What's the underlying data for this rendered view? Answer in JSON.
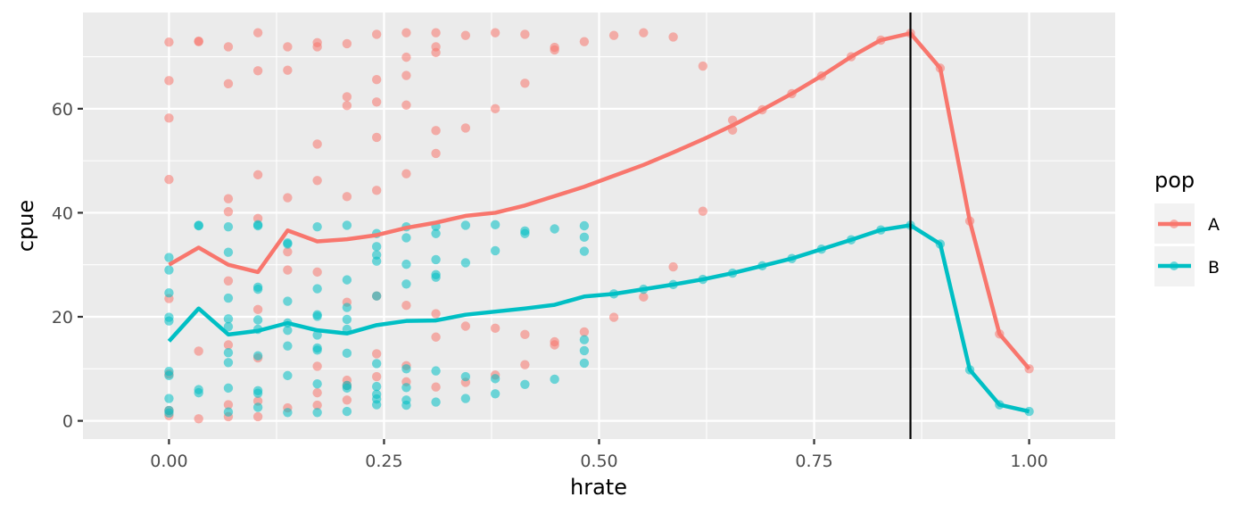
{
  "chart_data": {
    "type": "scatter",
    "xlabel": "hrate",
    "ylabel": "cpue",
    "xlim": [
      -0.1,
      1.1
    ],
    "ylim": [
      -3.5,
      78.5
    ],
    "x_ticks": [
      0.0,
      0.25,
      0.5,
      0.75,
      1.0
    ],
    "x_tick_labels": [
      "0.00",
      "0.25",
      "0.50",
      "0.75",
      "1.00"
    ],
    "y_ticks": [
      0,
      20,
      40,
      60
    ],
    "y_tick_labels": [
      "0",
      "20",
      "40",
      "60"
    ],
    "grid": true,
    "background": "#ebebeb",
    "vline_x": 0.862,
    "legend": {
      "title": "pop",
      "position": "right"
    },
    "series": [
      {
        "name": "A",
        "color": "#f8766d",
        "line": {
          "x": [
            0.0,
            0.0345,
            0.069,
            0.1034,
            0.1379,
            0.1724,
            0.2069,
            0.2414,
            0.2759,
            0.3103,
            0.3448,
            0.3793,
            0.4138,
            0.4483,
            0.4828,
            0.5172,
            0.5517,
            0.5862,
            0.6207,
            0.6552,
            0.6897,
            0.7241,
            0.7586,
            0.7931,
            0.8276,
            0.862,
            0.8966,
            0.931,
            0.9655,
            1.0
          ],
          "y": [
            30.0,
            33.3,
            30.0,
            28.6,
            36.6,
            34.5,
            34.9,
            35.7,
            37.1,
            38.1,
            39.4,
            40.0,
            41.4,
            43.2,
            45.0,
            47.1,
            49.2,
            51.6,
            54.1,
            56.8,
            59.8,
            62.9,
            66.3,
            70.0,
            73.2,
            74.5,
            67.8,
            38.4,
            16.7,
            10.0
          ]
        },
        "points": {
          "x": [
            0.0,
            0.0,
            0.0,
            0.0,
            0.0,
            0.0,
            0.0,
            0.0,
            0.0345,
            0.0345,
            0.0345,
            0.0345,
            0.069,
            0.069,
            0.069,
            0.069,
            0.069,
            0.069,
            0.069,
            0.069,
            0.1034,
            0.1034,
            0.1034,
            0.1034,
            0.1034,
            0.1034,
            0.1034,
            0.1034,
            0.1379,
            0.1379,
            0.1379,
            0.1379,
            0.1379,
            0.1379,
            0.1724,
            0.1724,
            0.1724,
            0.1724,
            0.1724,
            0.1724,
            0.1724,
            0.1724,
            0.2069,
            0.2069,
            0.2069,
            0.2069,
            0.2069,
            0.2069,
            0.2069,
            0.2069,
            0.2414,
            0.2414,
            0.2414,
            0.2414,
            0.2414,
            0.2414,
            0.2414,
            0.2414,
            0.2759,
            0.2759,
            0.2759,
            0.2759,
            0.2759,
            0.2759,
            0.2759,
            0.2759,
            0.3103,
            0.3103,
            0.3103,
            0.3103,
            0.3103,
            0.3103,
            0.3103,
            0.3103,
            0.3448,
            0.3448,
            0.3448,
            0.3448,
            0.3793,
            0.3793,
            0.3793,
            0.3793,
            0.4138,
            0.4138,
            0.4138,
            0.4138,
            0.4483,
            0.4483,
            0.4483,
            0.4483,
            0.4828,
            0.4828,
            0.5172,
            0.5172,
            0.5517,
            0.5517,
            0.5862,
            0.5862,
            0.6207,
            0.6207,
            0.6552,
            0.6552,
            0.6897,
            0.7241,
            0.7586,
            0.7931,
            0.8276,
            0.862,
            0.8966,
            0.931,
            0.9655,
            1.0
          ],
          "y": [
            72.8,
            65.4,
            58.2,
            46.4,
            23.5,
            9.0,
            2.0,
            1.0,
            73.0,
            72.9,
            13.4,
            0.4,
            71.9,
            64.8,
            42.7,
            40.2,
            26.9,
            14.6,
            3.1,
            0.8,
            74.6,
            67.3,
            47.3,
            38.9,
            21.4,
            12.1,
            3.8,
            0.8,
            71.9,
            67.4,
            42.9,
            32.5,
            29.0,
            2.5,
            72.7,
            71.9,
            53.2,
            46.2,
            28.6,
            10.5,
            5.4,
            3.0,
            72.5,
            62.3,
            60.6,
            43.1,
            22.8,
            7.8,
            4.0,
            6.8,
            74.3,
            65.6,
            61.3,
            54.5,
            44.3,
            24.0,
            12.9,
            8.5,
            74.6,
            69.9,
            66.4,
            60.7,
            47.5,
            22.2,
            10.6,
            7.5,
            74.6,
            71.9,
            70.8,
            55.8,
            51.4,
            20.6,
            16.1,
            6.5,
            74.1,
            56.3,
            18.2,
            7.4,
            74.6,
            60.0,
            17.8,
            8.8,
            74.3,
            64.9,
            16.6,
            10.8,
            71.8,
            71.3,
            15.2,
            14.6,
            72.9,
            17.1,
            74.1,
            19.9,
            74.6,
            23.8,
            73.8,
            29.6,
            68.2,
            40.3,
            57.8,
            55.9,
            59.8,
            62.9,
            66.3,
            70.0,
            73.2,
            74.5,
            67.8,
            38.4,
            16.7,
            10.0
          ]
        }
      },
      {
        "name": "B",
        "color": "#00bfc4",
        "line": {
          "x": [
            0.0,
            0.0345,
            0.069,
            0.1034,
            0.1379,
            0.1724,
            0.2069,
            0.2414,
            0.2759,
            0.3103,
            0.3448,
            0.3793,
            0.4138,
            0.4483,
            0.4828,
            0.5172,
            0.5517,
            0.5862,
            0.6207,
            0.6552,
            0.6897,
            0.7241,
            0.7586,
            0.7931,
            0.8276,
            0.862,
            0.8966,
            0.931,
            0.9655,
            1.0
          ],
          "y": [
            15.3,
            21.6,
            16.6,
            17.3,
            18.8,
            17.4,
            16.8,
            18.4,
            19.2,
            19.3,
            20.4,
            21.0,
            21.6,
            22.3,
            23.9,
            24.4,
            25.3,
            26.2,
            27.2,
            28.4,
            29.8,
            31.2,
            33.0,
            34.8,
            36.7,
            37.6,
            34.0,
            9.8,
            3.1,
            1.8
          ]
        },
        "points": {
          "x": [
            0.0,
            0.0,
            0.0,
            0.0,
            0.0,
            0.0,
            0.0,
            0.0,
            0.0,
            0.0,
            0.0345,
            0.0345,
            0.0345,
            0.0345,
            0.069,
            0.069,
            0.069,
            0.069,
            0.069,
            0.069,
            0.069,
            0.069,
            0.069,
            0.1034,
            0.1034,
            0.1034,
            0.1034,
            0.1034,
            0.1034,
            0.1034,
            0.1034,
            0.1034,
            0.1034,
            0.1379,
            0.1379,
            0.1379,
            0.1379,
            0.1379,
            0.1379,
            0.1379,
            0.1379,
            0.1724,
            0.1724,
            0.1724,
            0.1724,
            0.1724,
            0.1724,
            0.1724,
            0.1724,
            0.1724,
            0.2069,
            0.2069,
            0.2069,
            0.2069,
            0.2069,
            0.2069,
            0.2069,
            0.2069,
            0.2069,
            0.2414,
            0.2414,
            0.2414,
            0.2414,
            0.2414,
            0.2414,
            0.2414,
            0.2414,
            0.2414,
            0.2414,
            0.2759,
            0.2759,
            0.2759,
            0.2759,
            0.2759,
            0.2759,
            0.2759,
            0.2759,
            0.3103,
            0.3103,
            0.3103,
            0.3103,
            0.3103,
            0.3103,
            0.3103,
            0.3448,
            0.3448,
            0.3448,
            0.3448,
            0.3793,
            0.3793,
            0.3793,
            0.3793,
            0.4138,
            0.4138,
            0.4138,
            0.4483,
            0.4483,
            0.4828,
            0.4828,
            0.4828,
            0.4828,
            0.4828,
            0.4828,
            0.5172,
            0.5517,
            0.5862,
            0.6207,
            0.6552,
            0.6897,
            0.7241,
            0.7586,
            0.7931,
            0.8276,
            0.862,
            0.8966,
            0.931,
            0.9655,
            1.0
          ],
          "y": [
            31.4,
            29.0,
            24.6,
            19.9,
            19.2,
            9.5,
            4.3,
            2.0,
            1.5,
            8.7,
            37.6,
            37.5,
            6.0,
            5.4,
            37.3,
            32.4,
            23.6,
            19.6,
            18.1,
            13.1,
            11.2,
            6.3,
            1.7,
            37.7,
            37.5,
            25.7,
            25.3,
            19.4,
            17.6,
            12.5,
            5.8,
            5.3,
            2.6,
            34.2,
            34.0,
            23.0,
            18.8,
            17.4,
            14.4,
            8.7,
            1.6,
            37.3,
            25.4,
            20.4,
            20.1,
            16.5,
            14.0,
            13.6,
            7.1,
            1.6,
            37.6,
            27.1,
            21.8,
            19.5,
            17.6,
            13.0,
            6.3,
            6.8,
            1.8,
            36.0,
            33.5,
            31.9,
            30.7,
            24.0,
            11.0,
            6.6,
            5.1,
            4.2,
            3.1,
            37.3,
            35.2,
            30.1,
            26.3,
            10.0,
            6.4,
            4.0,
            3.0,
            37.4,
            36.0,
            31.0,
            28.1,
            27.6,
            9.6,
            3.6,
            37.6,
            30.4,
            8.5,
            4.3,
            37.7,
            32.7,
            8.1,
            5.2,
            36.5,
            36.0,
            7.0,
            36.9,
            8.0,
            37.5,
            35.3,
            32.6,
            15.6,
            13.5,
            11.1,
            24.4,
            25.3,
            26.2,
            27.2,
            28.4,
            29.8,
            31.2,
            33.0,
            34.8,
            36.7,
            37.6,
            34.0,
            9.8,
            3.1,
            1.8
          ]
        }
      }
    ]
  }
}
